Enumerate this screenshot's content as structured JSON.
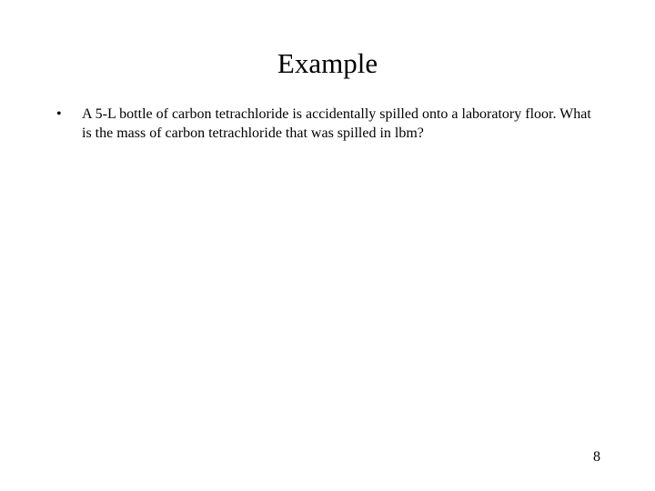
{
  "slide": {
    "title": "Example",
    "bullet_char": "•",
    "body_text": "A 5-L bottle of carbon tetrachloride is accidentally spilled onto a laboratory floor.  What is the mass of carbon tetrachloride that was spilled in lbm?",
    "page_number": "8"
  },
  "style": {
    "background_color": "#ffffff",
    "text_color": "#000000",
    "title_fontsize": 31,
    "body_fontsize": 16,
    "font_family": "Times New Roman"
  }
}
